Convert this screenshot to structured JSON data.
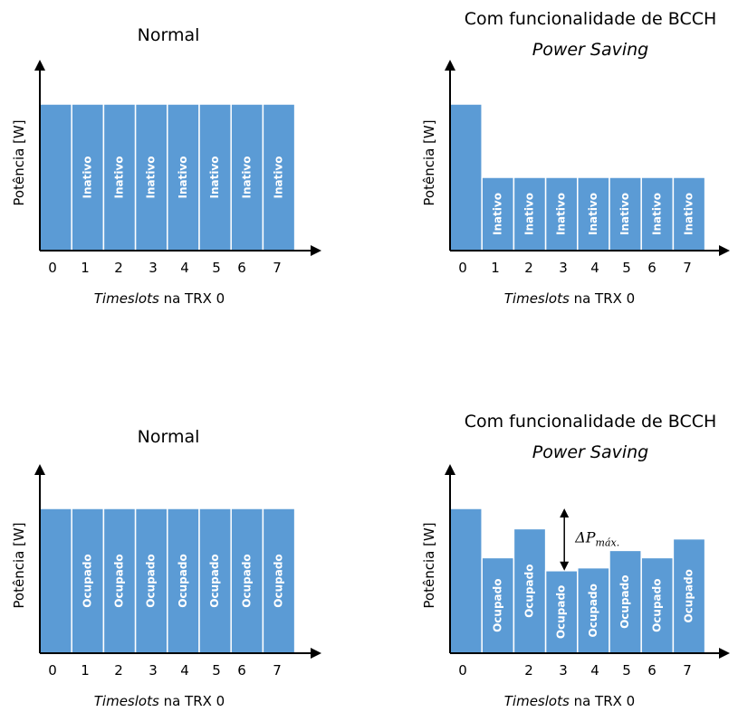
{
  "colors": {
    "bar": "#5b9bd5",
    "bar_label": "#ffffff",
    "axis": "#000000"
  },
  "chart_data": [
    {
      "type": "bar",
      "title": "Normal",
      "subtitle": "",
      "xlabel_italic": "Timeslots",
      "xlabel_rest": " na TRX 0",
      "ylabel": "Potência [W]",
      "categories": [
        "0",
        "1",
        "2",
        "3",
        "4",
        "5",
        "6",
        "7"
      ],
      "values": [
        100,
        100,
        100,
        100,
        100,
        100,
        100,
        100
      ],
      "bar_labels": [
        "",
        "Inativo",
        "Inativo",
        "Inativo",
        "Inativo",
        "Inativo",
        "Inativo",
        "Inativo"
      ],
      "ylim": [
        0,
        100
      ]
    },
    {
      "type": "bar",
      "title": "Com funcionalidade de BCCH",
      "subtitle": "Power Saving",
      "xlabel_italic": "Timeslots",
      "xlabel_rest": " na TRX 0",
      "ylabel": "Potência [W]",
      "categories": [
        "0",
        "1",
        "2",
        "3",
        "4",
        "5",
        "6",
        "7"
      ],
      "values": [
        100,
        50,
        50,
        50,
        50,
        50,
        50,
        50
      ],
      "bar_labels": [
        "",
        "Inativo",
        "Inativo",
        "Inativo",
        "Inativo",
        "Inativo",
        "Inativo",
        "Inativo"
      ],
      "ylim": [
        0,
        100
      ]
    },
    {
      "type": "bar",
      "title": "Normal",
      "subtitle": "",
      "xlabel_italic": "Timeslots",
      "xlabel_rest": " na TRX 0",
      "ylabel": "Potência [W]",
      "categories": [
        "0",
        "1",
        "2",
        "3",
        "4",
        "5",
        "6",
        "7"
      ],
      "values": [
        100,
        100,
        100,
        100,
        100,
        100,
        100,
        100
      ],
      "bar_labels": [
        "",
        "Ocupado",
        "Ocupado",
        "Ocupado",
        "Ocupado",
        "Ocupado",
        "Ocupado",
        "Ocupado"
      ],
      "ylim": [
        0,
        100
      ]
    },
    {
      "type": "bar",
      "title": "Com funcionalidade de BCCH",
      "subtitle": "Power Saving",
      "xlabel_italic": "Timeslots",
      "xlabel_rest": " na TRX 0",
      "ylabel": "Potência [W]",
      "categories": [
        "0",
        "",
        "2",
        "3",
        "4",
        "5",
        "6",
        "7"
      ],
      "values": [
        100,
        66,
        86,
        57,
        59,
        71,
        66,
        79
      ],
      "bar_labels": [
        "",
        "Ocupado",
        "Ocupado",
        "Ocupado",
        "Ocupado",
        "Ocupado",
        "Ocupado",
        "Ocupado"
      ],
      "ylim": [
        0,
        100
      ],
      "annotation": {
        "text": "ΔP",
        "subscript": "máx.",
        "from_value": 100,
        "to_value": 57,
        "between_bar": 3
      }
    }
  ]
}
